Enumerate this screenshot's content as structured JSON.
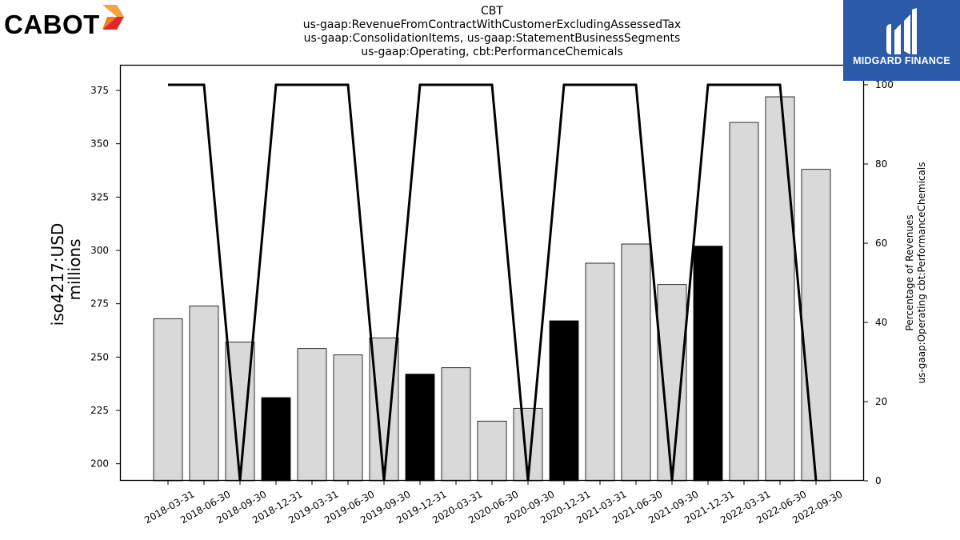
{
  "header": {
    "brand_left": "CABOT",
    "brand_right": "MIDGARD FINANCE",
    "title_lines": [
      "CBT",
      "us-gaap:RevenueFromContractWithCustomerExcludingAssessedTax",
      "us-gaap:ConsolidationItems, us-gaap:StatementBusinessSegments",
      "us-gaap:Operating, cbt:PerformanceChemicals"
    ]
  },
  "colors": {
    "bar_default": "#d9d9d9",
    "bar_highlight": "#000000",
    "line": "#000000",
    "brand_right_bg": "#2b5aa8"
  },
  "chart_data": {
    "type": "bar",
    "categories": [
      "2018-03-31",
      "2018-06-30",
      "2018-09-30",
      "2018-12-31",
      "2019-03-31",
      "2019-06-30",
      "2019-09-30",
      "2019-12-31",
      "2020-03-31",
      "2020-06-30",
      "2020-09-30",
      "2020-12-31",
      "2021-03-31",
      "2021-06-30",
      "2021-09-30",
      "2021-12-31",
      "2022-03-31",
      "2022-06-30",
      "2022-09-30"
    ],
    "values": [
      268,
      274,
      257,
      231,
      254,
      251,
      259,
      242,
      245,
      220,
      226,
      267,
      294,
      303,
      284,
      302,
      360,
      372,
      338
    ],
    "highlighted": [
      false,
      false,
      false,
      true,
      false,
      false,
      false,
      true,
      false,
      false,
      false,
      true,
      false,
      false,
      false,
      true,
      false,
      false,
      false
    ],
    "ylabel": "iso4217:USD",
    "ylabel_sub": "millions",
    "ylim": [
      192,
      387
    ],
    "yticks": [
      200,
      225,
      250,
      275,
      300,
      325,
      350,
      375
    ],
    "secondary": {
      "type": "line",
      "values": [
        100,
        100,
        0,
        100,
        100,
        100,
        0,
        100,
        100,
        100,
        0,
        100,
        100,
        100,
        0,
        100,
        100,
        100,
        0
      ],
      "ylabel_lines": [
        "Percentage of Revenues",
        "us-gaap:Operating cbt:PerformanceChemicals"
      ],
      "ylim": [
        0,
        100
      ],
      "yticks": [
        0,
        20,
        40,
        60,
        80,
        100
      ]
    },
    "grid": false
  }
}
